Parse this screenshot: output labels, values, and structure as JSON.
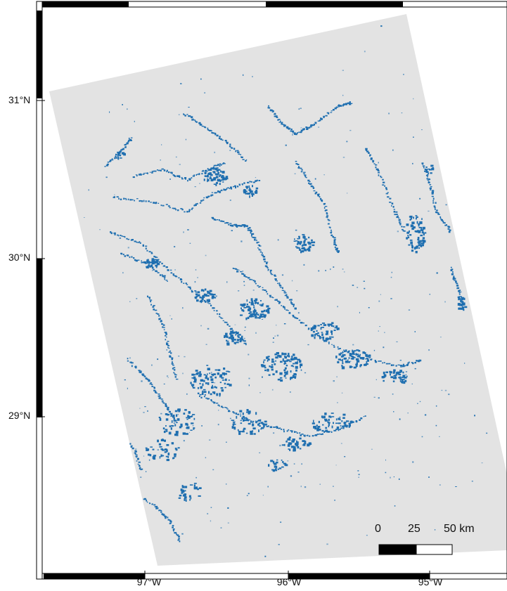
{
  "map": {
    "colors": {
      "land": "#e3e3e3",
      "water": "#1f6fb0",
      "frame_dark": "#000000",
      "frame_light": "#ffffff"
    },
    "lat_labels": [
      "31°N",
      "30°N",
      "29°N"
    ],
    "lon_labels": [
      "97°W",
      "96°W",
      "95°W"
    ],
    "scale_bar": {
      "labels": [
        "0",
        "25",
        "50 km"
      ]
    }
  }
}
